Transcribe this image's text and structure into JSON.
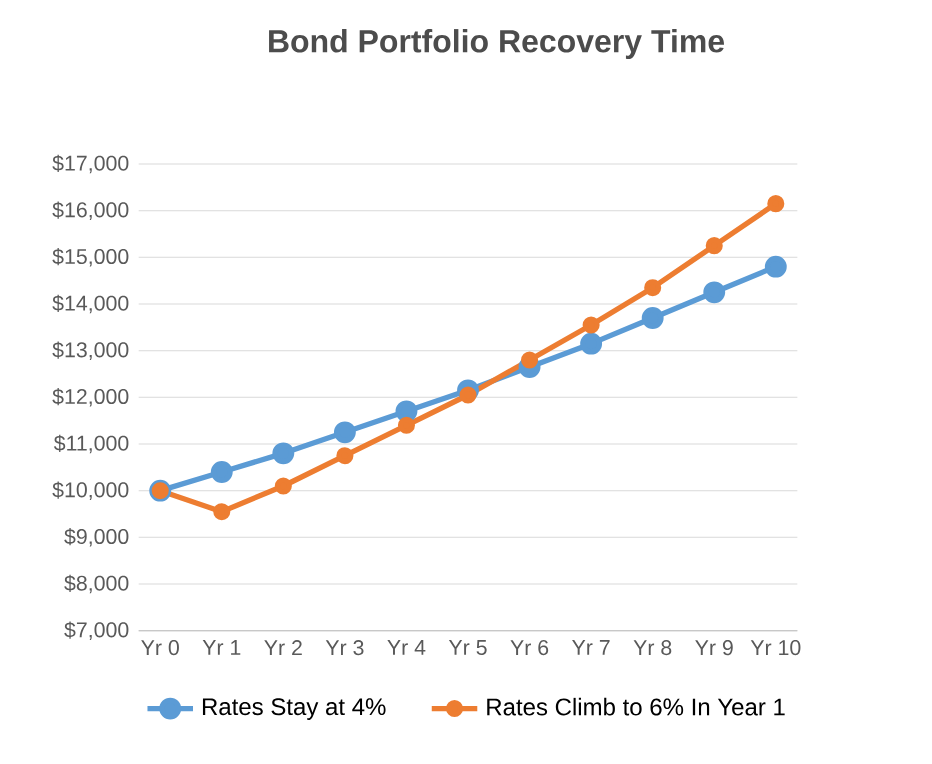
{
  "chart_data": {
    "type": "line",
    "title": "Bond Portfolio Recovery Time",
    "categories": [
      "Yr 0",
      "Yr 1",
      "Yr 2",
      "Yr 3",
      "Yr 4",
      "Yr 5",
      "Yr 6",
      "Yr 7",
      "Yr 8",
      "Yr 9",
      "Yr 10"
    ],
    "series": [
      {
        "name": "Rates Stay at 4%",
        "color": "#5b9bd5",
        "values": [
          10000,
          10400,
          10800,
          11250,
          11700,
          12150,
          12650,
          13150,
          13700,
          14250,
          14800
        ]
      },
      {
        "name": "Rates Climb to 6% In Year 1",
        "color": "#ed7d31",
        "values": [
          10000,
          9550,
          10100,
          10750,
          11400,
          12050,
          12800,
          13550,
          14350,
          15250,
          16150
        ]
      }
    ],
    "ylim": [
      7000,
      17000
    ],
    "yticks": [
      {
        "value": 7000,
        "label": "$7,000"
      },
      {
        "value": 8000,
        "label": "$8,000"
      },
      {
        "value": 9000,
        "label": "$9,000"
      },
      {
        "value": 10000,
        "label": "$10,000"
      },
      {
        "value": 11000,
        "label": "$11,000"
      },
      {
        "value": 12000,
        "label": "$12,000"
      },
      {
        "value": 13000,
        "label": "$13,000"
      },
      {
        "value": 14000,
        "label": "$14,000"
      },
      {
        "value": 15000,
        "label": "$15,000"
      },
      {
        "value": 16000,
        "label": "$16,000"
      },
      {
        "value": 17000,
        "label": "$17,000"
      }
    ],
    "grid": "y",
    "legend": "bottom",
    "marker": "circle",
    "line_style": "solid"
  }
}
